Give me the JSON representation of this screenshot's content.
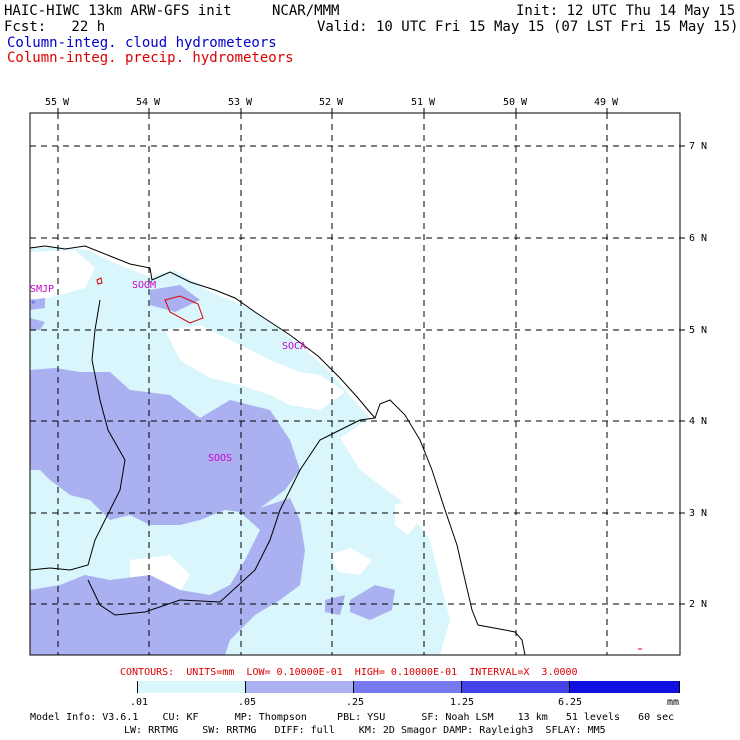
{
  "header": {
    "title_left": "HAIC-HIWC 13km ARW-GFS init",
    "title_center": "NCAR/MMM",
    "init": "Init: 12 UTC Thu 14 May 15",
    "fcst": "Fcst:   22 h",
    "valid": "Valid: 10 UTC Fri 15 May 15 (07 LST Fri 15 May 15)",
    "field1": "Column-integ. cloud hydrometeors",
    "field2": "Column-integ. precip. hydrometeors"
  },
  "axes": {
    "lon_labels": [
      "55 W",
      "54 W",
      "53 W",
      "52 W",
      "51 W",
      "50 W",
      "49 W"
    ],
    "lat_labels": [
      "7 N",
      "6 N",
      "5 N",
      "4 N",
      "3 N",
      "2 N"
    ]
  },
  "stations": [
    "SMJP",
    "SOGM",
    "SOCA",
    "SOOS"
  ],
  "contour_info": "CONTOURS:  UNITS=mm  LOW= 0.10000E-01  HIGH= 0.10000E-01  INTERVAL=X  3.0000",
  "colorbar": {
    "labels": [
      ".01",
      ".05",
      ".25",
      "1.25",
      "6.25",
      "mm"
    ],
    "colors": [
      "#ffffff",
      "#d8f6fb",
      "#aab0f0",
      "#7878f0",
      "#4242e8",
      "#1010e0"
    ]
  },
  "model_info": {
    "line1": "Model Info: V3.6.1    CU: KF      MP: Thompson     PBL: YSU      SF: Noah LSM    13 km   51 levels   60 sec",
    "line2": "LW: RRTMG    SW: RRTMG   DIFF: full    KM: 2D Smagor DAMP: Rayleigh3  SFLAY: MM5"
  },
  "colors": {
    "cloud_light": "#d8f6fb",
    "cloud_mid": "#aab0f0",
    "contour_red": "#dd0000",
    "station_magenta": "#cc00cc"
  }
}
